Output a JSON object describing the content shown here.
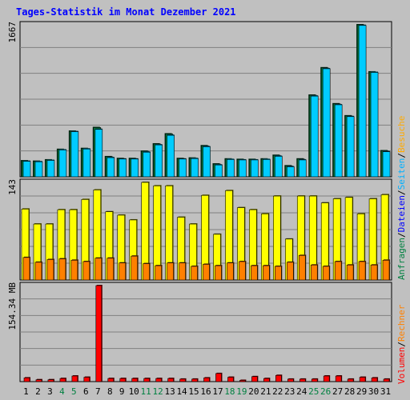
{
  "chart_data": [
    {
      "type": "bar",
      "title": "Tages-Statistik im Monat Dezember 2021",
      "ymax_label": "1667",
      "ylim": [
        0,
        1667
      ],
      "categories": [
        "1",
        "2",
        "3",
        "4",
        "5",
        "6",
        "7",
        "8",
        "9",
        "10",
        "11",
        "12",
        "13",
        "14",
        "15",
        "16",
        "17",
        "18",
        "19",
        "20",
        "21",
        "22",
        "23",
        "24",
        "25",
        "26",
        "27",
        "28",
        "29",
        "30",
        "31"
      ],
      "weekend_days": [
        "4",
        "5",
        "11",
        "12",
        "18",
        "19",
        "25",
        "26"
      ],
      "series": [
        {
          "name": "Anfragen",
          "color": "#008040",
          "values": [
            175,
            170,
            185,
            300,
            500,
            310,
            540,
            220,
            200,
            200,
            280,
            360,
            470,
            200,
            205,
            340,
            140,
            195,
            190,
            190,
            195,
            235,
            120,
            195,
            895,
            1195,
            800,
            668,
            1667,
            1150,
            285
          ]
        },
        {
          "name": "Dateien",
          "color": "#00ccff",
          "values": [
            170,
            165,
            180,
            295,
            495,
            305,
            520,
            210,
            195,
            195,
            270,
            350,
            455,
            195,
            200,
            330,
            130,
            190,
            185,
            185,
            190,
            225,
            110,
            185,
            885,
            1185,
            790,
            660,
            1660,
            1145,
            275
          ]
        }
      ],
      "legend_labels": [
        {
          "text": "Anfragen",
          "color": "#008040"
        },
        {
          "text": "/",
          "color": "#000000"
        },
        {
          "text": "Dateien",
          "color": "#0000ff"
        },
        {
          "text": "/",
          "color": "#000000"
        },
        {
          "text": "Seiten",
          "color": "#00b0ff"
        },
        {
          "text": "/",
          "color": "#000000"
        },
        {
          "text": "Besuche",
          "color": "#ffaa00"
        }
      ]
    },
    {
      "type": "bar",
      "ymax_label": "143",
      "ylim": [
        0,
        143
      ],
      "series": [
        {
          "name": "Seiten",
          "color": "#ffff00",
          "values": [
            104,
            82,
            82,
            103,
            103,
            118,
            132,
            100,
            95,
            88,
            143,
            138,
            138,
            92,
            82,
            124,
            67,
            131,
            106,
            103,
            97,
            123,
            60,
            123,
            123,
            113,
            119,
            121,
            97,
            119,
            125
          ]
        },
        {
          "name": "Besuche",
          "color": "#ff8000",
          "values": [
            33,
            26,
            30,
            31,
            29,
            27,
            32,
            32,
            25,
            35,
            24,
            21,
            25,
            25,
            20,
            23,
            21,
            25,
            27,
            21,
            21,
            20,
            26,
            36,
            22,
            20,
            27,
            22,
            27,
            22,
            29
          ]
        }
      ]
    },
    {
      "type": "bar",
      "ymax_label": "154.34 MB",
      "ylim": [
        0,
        154.34
      ],
      "series": [
        {
          "name": "Volumen",
          "color": "#ff0000",
          "values": [
            6,
            3,
            3,
            5,
            9,
            7,
            154.34,
            5,
            5,
            5,
            5,
            5,
            5,
            4,
            4,
            6,
            13,
            7,
            2,
            8,
            5,
            10,
            4,
            4,
            4,
            9,
            9,
            4,
            7,
            6,
            4
          ]
        }
      ],
      "legend_labels": [
        {
          "text": "Volumen",
          "color": "#ff0000"
        },
        {
          "text": "/",
          "color": "#000000"
        },
        {
          "text": "Rechner",
          "color": "#ff8000"
        }
      ]
    }
  ]
}
